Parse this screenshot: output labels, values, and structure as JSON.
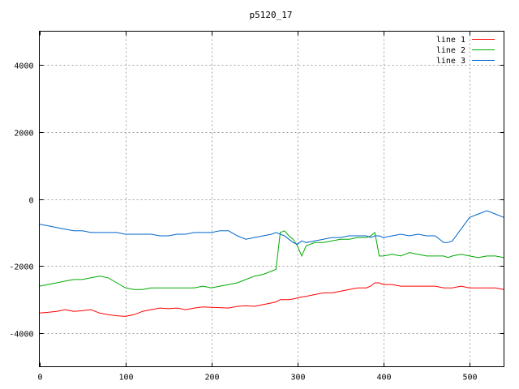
{
  "chart_data": {
    "type": "line",
    "title": "p5120_17",
    "xlabel": "",
    "ylabel": "",
    "xlim": [
      0,
      540
    ],
    "ylim": [
      -5000,
      5000
    ],
    "xticks": [
      0,
      100,
      200,
      300,
      400,
      500
    ],
    "yticks": [
      -4000,
      -2000,
      0,
      2000,
      4000
    ],
    "grid": true,
    "legend_position": "top-right",
    "x": [
      0,
      10,
      20,
      30,
      40,
      50,
      60,
      70,
      80,
      90,
      100,
      110,
      120,
      130,
      140,
      150,
      160,
      170,
      180,
      190,
      200,
      210,
      220,
      230,
      240,
      250,
      260,
      270,
      275,
      280,
      285,
      290,
      295,
      300,
      305,
      310,
      320,
      330,
      340,
      350,
      360,
      370,
      380,
      385,
      390,
      395,
      400,
      410,
      420,
      430,
      440,
      450,
      460,
      470,
      475,
      480,
      490,
      500,
      510,
      520,
      530,
      540
    ],
    "series": [
      {
        "name": "line 1",
        "color": "#ff0000",
        "values": [
          -3400,
          -3380,
          -3350,
          -3300,
          -3350,
          -3330,
          -3300,
          -3400,
          -3450,
          -3480,
          -3500,
          -3450,
          -3350,
          -3300,
          -3250,
          -3270,
          -3250,
          -3300,
          -3250,
          -3220,
          -3230,
          -3240,
          -3250,
          -3200,
          -3180,
          -3200,
          -3150,
          -3100,
          -3070,
          -3000,
          -3000,
          -3000,
          -2980,
          -2950,
          -2920,
          -2900,
          -2850,
          -2800,
          -2800,
          -2750,
          -2700,
          -2650,
          -2650,
          -2600,
          -2500,
          -2500,
          -2550,
          -2550,
          -2600,
          -2600,
          -2600,
          -2600,
          -2600,
          -2650,
          -2650,
          -2650,
          -2600,
          -2650,
          -2650,
          -2650,
          -2650,
          -2700
        ]
      },
      {
        "name": "line 2",
        "color": "#00aa00",
        "values": [
          -2600,
          -2550,
          -2500,
          -2450,
          -2400,
          -2400,
          -2350,
          -2300,
          -2350,
          -2500,
          -2650,
          -2700,
          -2700,
          -2650,
          -2650,
          -2650,
          -2650,
          -2650,
          -2650,
          -2600,
          -2650,
          -2600,
          -2550,
          -2500,
          -2400,
          -2300,
          -2250,
          -2150,
          -2100,
          -1000,
          -950,
          -1100,
          -1200,
          -1400,
          -1700,
          -1400,
          -1300,
          -1300,
          -1250,
          -1200,
          -1200,
          -1150,
          -1150,
          -1100,
          -1000,
          -1700,
          -1700,
          -1650,
          -1700,
          -1600,
          -1650,
          -1700,
          -1700,
          -1700,
          -1750,
          -1700,
          -1650,
          -1700,
          -1750,
          -1700,
          -1700,
          -1750
        ]
      },
      {
        "name": "line 3",
        "color": "#0066cc",
        "values": [
          -750,
          -800,
          -850,
          -900,
          -950,
          -950,
          -1000,
          -1000,
          -1000,
          -1000,
          -1050,
          -1050,
          -1050,
          -1050,
          -1100,
          -1100,
          -1050,
          -1050,
          -1000,
          -1000,
          -1000,
          -950,
          -950,
          -1100,
          -1200,
          -1150,
          -1100,
          -1050,
          -1000,
          -1050,
          -1100,
          -1200,
          -1300,
          -1350,
          -1250,
          -1300,
          -1250,
          -1200,
          -1150,
          -1150,
          -1100,
          -1100,
          -1100,
          -1150,
          -1100,
          -1100,
          -1150,
          -1100,
          -1050,
          -1100,
          -1050,
          -1100,
          -1100,
          -1300,
          -1300,
          -1250,
          -900,
          -550,
          -450,
          -350,
          -450,
          -550
        ]
      }
    ]
  }
}
